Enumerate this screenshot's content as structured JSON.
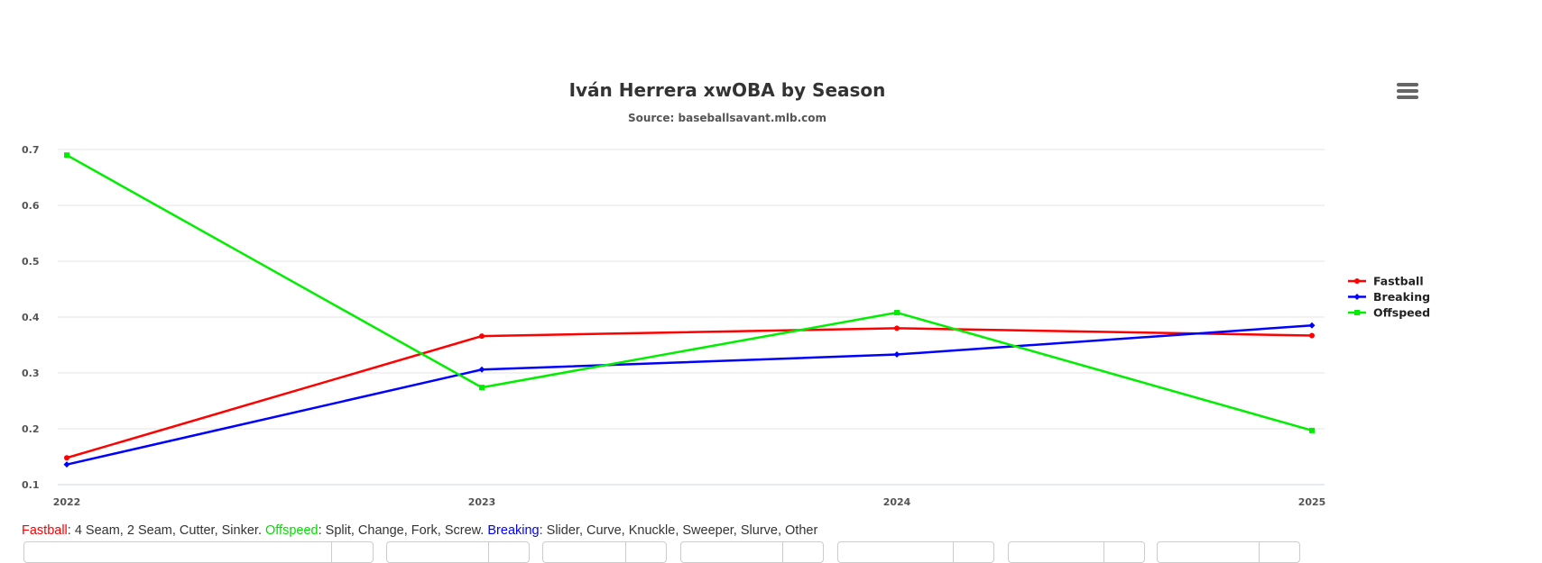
{
  "chart": {
    "title": "Iván Herrera xwOBA by Season",
    "subtitle": "Source: baseballsavant.mlb.com"
  },
  "chart_data": {
    "type": "line",
    "title": "Iván Herrera xwOBA by Season",
    "subtitle": "Source: baseballsavant.mlb.com",
    "xlabel": "",
    "ylabel": "",
    "categories": [
      "2022",
      "2023",
      "2024",
      "2025"
    ],
    "ylim": [
      0.1,
      0.7
    ],
    "yticks": [
      "0.1",
      "0.2",
      "0.3",
      "0.4",
      "0.5",
      "0.6",
      "0.7"
    ],
    "grid": true,
    "legend_position": "right",
    "series": [
      {
        "name": "Fastball",
        "color": "#ff0000",
        "marker": "circle",
        "values": [
          0.148,
          0.366,
          0.38,
          0.367
        ]
      },
      {
        "name": "Breaking",
        "color": "#0000ff",
        "marker": "diamond",
        "values": [
          0.136,
          0.306,
          0.333,
          0.385
        ]
      },
      {
        "name": "Offspeed",
        "color": "#00ee00",
        "marker": "square",
        "values": [
          0.69,
          0.274,
          0.408,
          0.197
        ]
      }
    ]
  },
  "footnote": {
    "fastball_label": "Fastball",
    "fastball_text": ": 4 Seam, 2 Seam, Cutter, Sinker. ",
    "offspeed_label": "Offspeed",
    "offspeed_text": ": Split, Change, Fork, Screw. ",
    "breaking_label": "Breaking",
    "breaking_text": ": Slider, Curve, Knuckle, Sweeper, Slurve, Other"
  },
  "icons": {
    "menu": "hamburger-menu-icon"
  }
}
